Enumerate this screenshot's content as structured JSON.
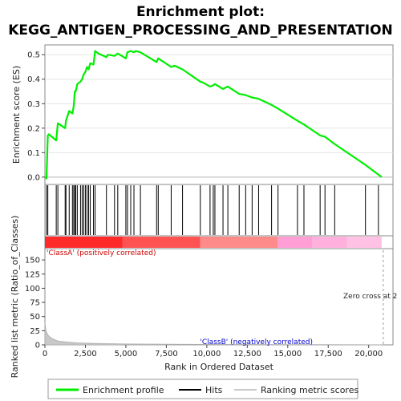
{
  "chart_data": {
    "type": "line",
    "title_line1": "Enrichment plot:",
    "title_line2": "KEGG_ANTIGEN_PROCESSING_AND_PRESENTATION",
    "top_panel": {
      "ylabel": "Enrichment score (ES)",
      "ylim": [
        -0.03,
        0.54
      ],
      "yticks": [
        "0.0",
        "0.1",
        "0.2",
        "0.3",
        "0.4",
        "0.5"
      ],
      "ytick_values": [
        0.0,
        0.1,
        0.2,
        0.3,
        0.4,
        0.5
      ],
      "series_name": "Enrichment profile",
      "color": "#00ee00",
      "x": [
        0,
        100,
        180,
        250,
        700,
        800,
        1250,
        1300,
        1500,
        1700,
        1780,
        1850,
        1900,
        2000,
        2200,
        2300,
        2400,
        2500,
        2600,
        2700,
        2800,
        3000,
        3100,
        3300,
        3800,
        3900,
        4300,
        4500,
        5000,
        5100,
        5300,
        5500,
        5600,
        5900,
        6900,
        7000,
        7800,
        8000,
        8500,
        9600,
        9800,
        10200,
        10400,
        10500,
        11000,
        11300,
        12000,
        12400,
        12800,
        13200,
        14000,
        14400,
        15600,
        16000,
        17000,
        17300,
        17900,
        19800,
        20200,
        20800
      ],
      "y": [
        0.0,
        -0.005,
        0.17,
        0.175,
        0.15,
        0.22,
        0.2,
        0.23,
        0.27,
        0.26,
        0.29,
        0.35,
        0.35,
        0.38,
        0.39,
        0.4,
        0.42,
        0.43,
        0.45,
        0.44,
        0.465,
        0.46,
        0.515,
        0.505,
        0.49,
        0.5,
        0.495,
        0.505,
        0.485,
        0.51,
        0.515,
        0.51,
        0.515,
        0.51,
        0.47,
        0.485,
        0.45,
        0.455,
        0.44,
        0.39,
        0.385,
        0.37,
        0.375,
        0.38,
        0.36,
        0.37,
        0.34,
        0.335,
        0.325,
        0.32,
        0.295,
        0.28,
        0.23,
        0.215,
        0.17,
        0.165,
        0.135,
        0.05,
        0.03,
        0.0
      ]
    },
    "hits": [
      100,
      180,
      700,
      800,
      1250,
      1300,
      1500,
      1700,
      1780,
      1850,
      1900,
      2000,
      2200,
      2300,
      2400,
      2500,
      2600,
      2700,
      2800,
      3000,
      3100,
      3800,
      4300,
      4500,
      5000,
      5100,
      5300,
      5500,
      5900,
      6900,
      7000,
      7800,
      8500,
      9600,
      10200,
      10400,
      10500,
      11000,
      11300,
      12000,
      12400,
      12800,
      13200,
      14000,
      14400,
      15600,
      16000,
      17000,
      17300,
      17900,
      19800,
      20600
    ],
    "gradient_band": {
      "classA_end": 14400,
      "classB_end": 20800,
      "colors": [
        "#ff3030",
        "#ff5050",
        "#ff9090",
        "#ff80c0",
        "#ff60b0",
        "#ffb0e0"
      ]
    },
    "bottom_panel": {
      "ylabel": "Ranked list metric (Ratio_of_Classes)",
      "ylim": [
        0,
        170
      ],
      "yticks": [
        "0",
        "25",
        "50",
        "75",
        "100",
        "125",
        "150"
      ],
      "ytick_values": [
        0,
        25,
        50,
        75,
        100,
        125,
        150
      ],
      "series_name": "Ranking metric scores",
      "color": "#c8c8c8",
      "x": [
        0,
        50,
        100,
        200,
        300,
        400,
        600,
        800,
        1000,
        1500,
        2000,
        3000,
        5000,
        10000,
        15000,
        20800
      ],
      "y": [
        40,
        28,
        22,
        17,
        14,
        12,
        9,
        7,
        6,
        4.5,
        3.5,
        2.5,
        1.5,
        0.8,
        0.5,
        0.2
      ],
      "classA_label": "'ClassA' (positively correlated)",
      "classB_label": "'ClassB' (negatively correlated)",
      "zero_cross_label": "Zero cross at 2",
      "zero_cross_x": 20900
    },
    "xlabel": "Rank in Ordered Dataset",
    "xlim": [
      0,
      21500
    ],
    "xticks": [
      "0",
      "2,500",
      "5,000",
      "7,500",
      "10,000",
      "12,500",
      "15,000",
      "17,500",
      "20,000"
    ],
    "xtick_values": [
      0,
      2500,
      5000,
      7500,
      10000,
      12500,
      15000,
      17500,
      20000
    ],
    "legend": {
      "placement": "bottom",
      "items": [
        {
          "label": "Enrichment profile",
          "color": "#00ee00",
          "style": "line"
        },
        {
          "label": "Hits",
          "color": "#000000",
          "style": "line"
        },
        {
          "label": "Ranking metric scores",
          "color": "#c8c8c8",
          "style": "line"
        }
      ]
    }
  }
}
